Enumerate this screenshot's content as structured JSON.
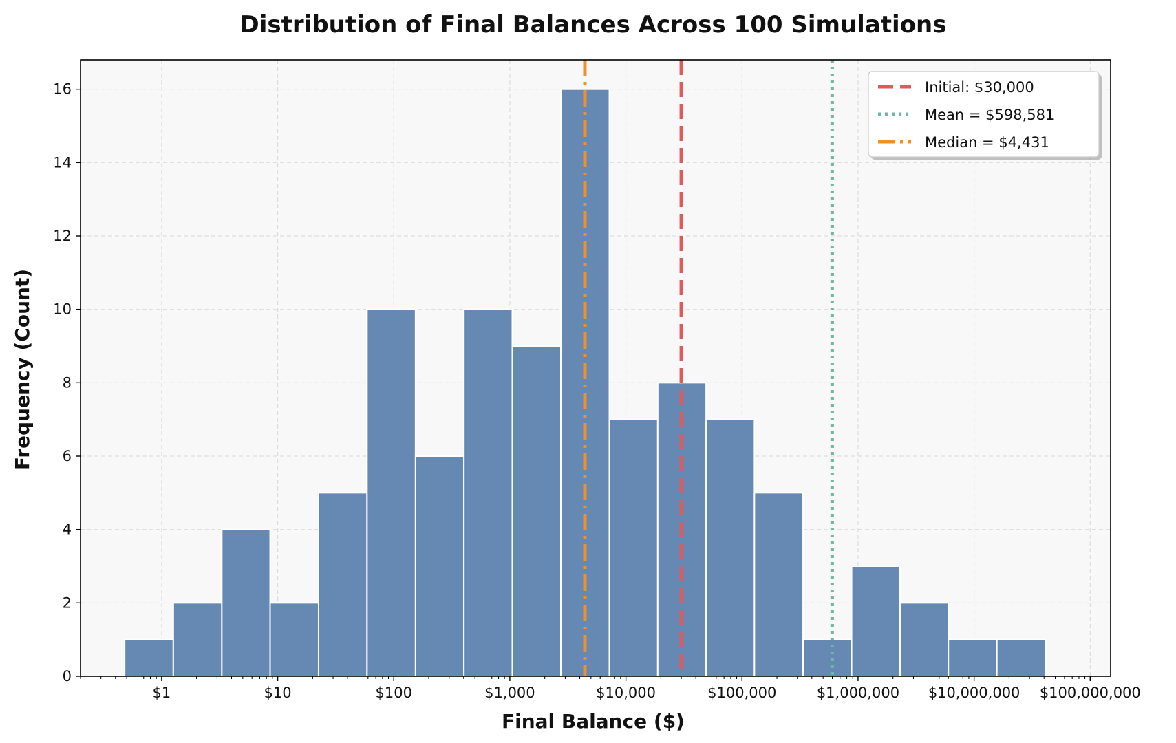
{
  "chart_data": {
    "type": "bar",
    "title": "Distribution of Final Balances Across 100 Simulations",
    "xlabel": "Final Balance ($)",
    "ylabel": "Frequency (Count)",
    "x_scale": "log",
    "xlim": [
      0.2,
      150000000
    ],
    "ylim": [
      0,
      16.8
    ],
    "grid": true,
    "legend_position": "top-right",
    "x_ticks": [
      {
        "value": 1,
        "label": "$1"
      },
      {
        "value": 10,
        "label": "$10"
      },
      {
        "value": 100,
        "label": "$100"
      },
      {
        "value": 1000,
        "label": "$1,000"
      },
      {
        "value": 10000,
        "label": "$10,000"
      },
      {
        "value": 100000,
        "label": "$100,000"
      },
      {
        "value": 1000000,
        "label": "$1,000,000"
      },
      {
        "value": 10000000,
        "label": "$10,000,000"
      },
      {
        "value": 100000000,
        "label": "$100,000,000"
      }
    ],
    "y_ticks": [
      0,
      2,
      4,
      6,
      8,
      10,
      12,
      14,
      16
    ],
    "bins": [
      {
        "from": 0.48,
        "to": 1.26,
        "count": 1
      },
      {
        "from": 1.26,
        "to": 3.3,
        "count": 2
      },
      {
        "from": 3.3,
        "to": 8.6,
        "count": 4
      },
      {
        "from": 8.6,
        "to": 22.5,
        "count": 2
      },
      {
        "from": 22.5,
        "to": 58.8,
        "count": 5
      },
      {
        "from": 58.8,
        "to": 154,
        "count": 10
      },
      {
        "from": 154,
        "to": 402,
        "count": 6
      },
      {
        "from": 402,
        "to": 1050,
        "count": 10
      },
      {
        "from": 1050,
        "to": 2750,
        "count": 9
      },
      {
        "from": 2750,
        "to": 7200,
        "count": 16
      },
      {
        "from": 7200,
        "to": 18800,
        "count": 7
      },
      {
        "from": 18800,
        "to": 49100,
        "count": 8
      },
      {
        "from": 49100,
        "to": 128000,
        "count": 7
      },
      {
        "from": 128000,
        "to": 336000,
        "count": 5
      },
      {
        "from": 336000,
        "to": 880000,
        "count": 1
      },
      {
        "from": 880000,
        "to": 2300000,
        "count": 3
      },
      {
        "from": 2300000,
        "to": 6000000,
        "count": 2
      },
      {
        "from": 6000000,
        "to": 15700000,
        "count": 1
      },
      {
        "from": 15700000,
        "to": 41000000,
        "count": 1
      }
    ],
    "reference_lines": [
      {
        "label": "Initial: $30,000",
        "value": 30000,
        "color": "#e05a5a",
        "style": "dashed"
      },
      {
        "label": "Mean = $598,581",
        "value": 598581,
        "color": "#6bb8a8",
        "style": "dotted"
      },
      {
        "label": "Median = $4,431",
        "value": 4431,
        "color": "#f28e2b",
        "style": "dashdot"
      }
    ],
    "colors": {
      "bar_fill": "#6689b3",
      "bar_edge": "#ffffff",
      "plot_background": "#f8f8f8",
      "grid": "#dddddd"
    }
  }
}
